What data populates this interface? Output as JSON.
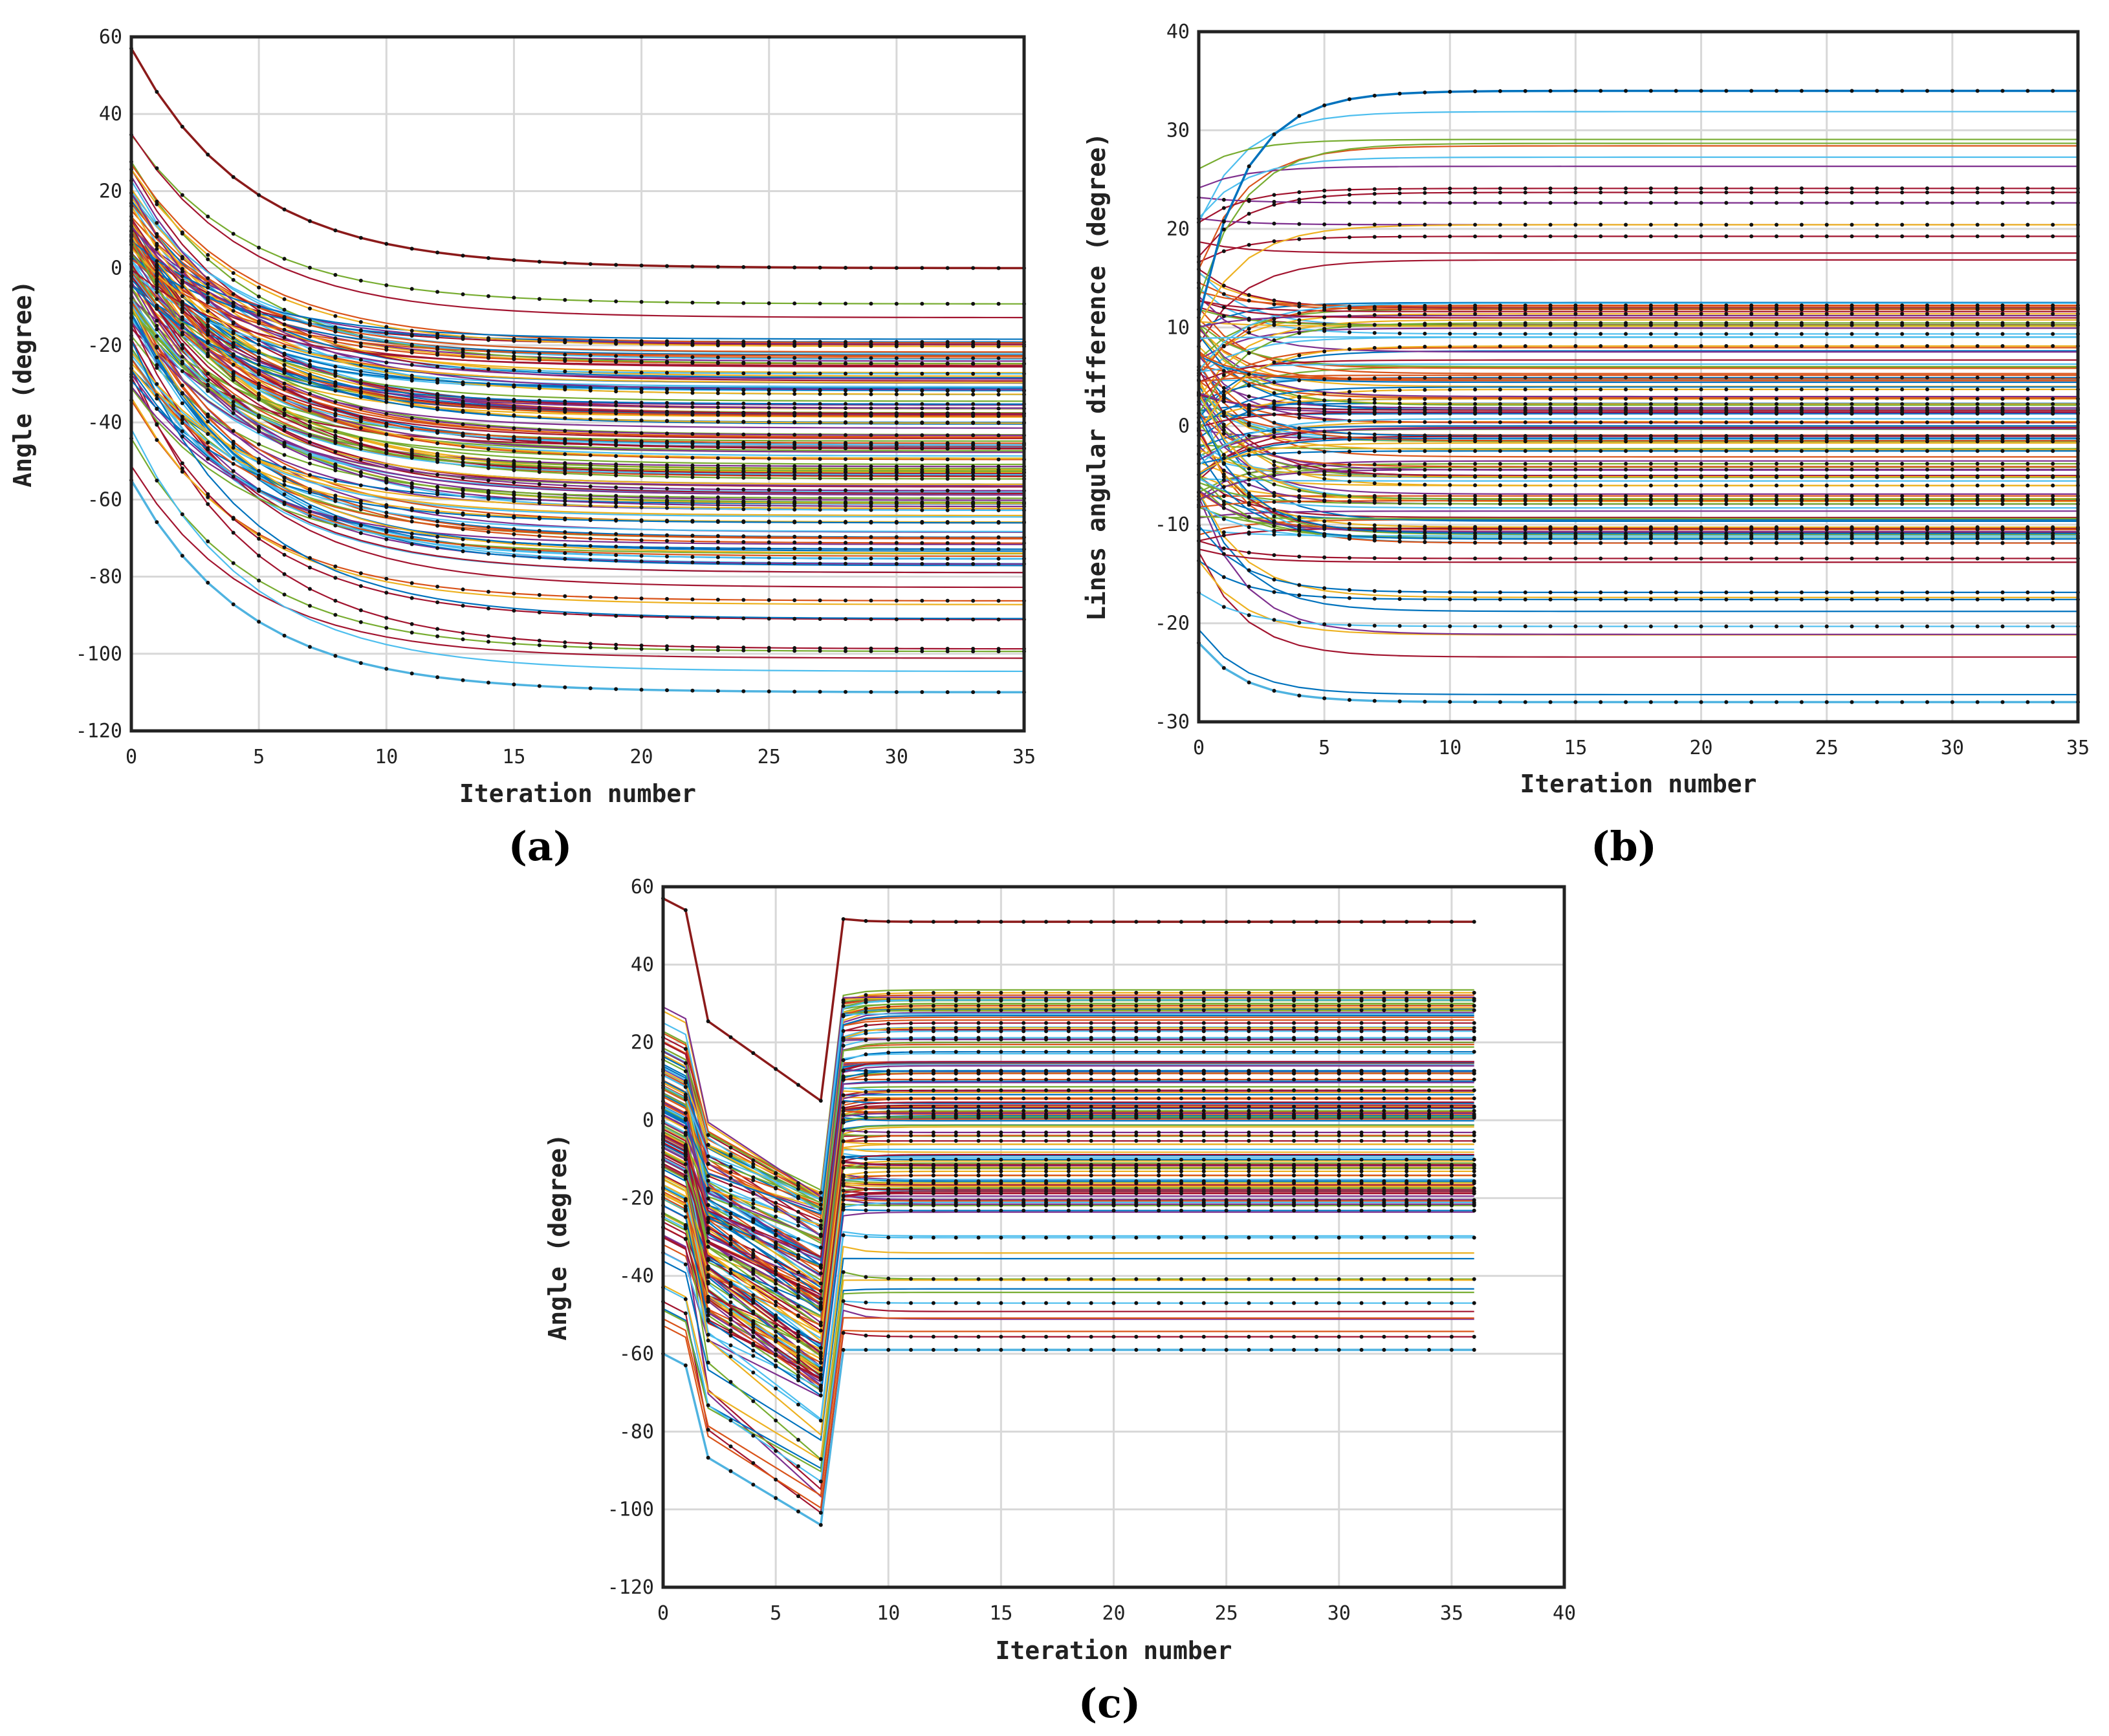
{
  "chart_data": [
    {
      "panel_label": "(a)",
      "type": "line",
      "title": "",
      "xlabel": "Iteration number",
      "ylabel": "Angle (degree)",
      "xlim": [
        0,
        35
      ],
      "ylim": [
        -120,
        60
      ],
      "xticks": [
        0,
        5,
        10,
        15,
        20,
        25,
        30,
        35
      ],
      "yticks": [
        -120,
        -100,
        -80,
        -60,
        -40,
        -20,
        0,
        20,
        40,
        60
      ],
      "grid": true,
      "n_iterations": 35,
      "transient": {
        "kind": "exp",
        "decay": 0.22,
        "jump_at": null
      },
      "series_summary": {
        "count": 150,
        "start_range": [
          -60,
          40
        ],
        "final_range": [
          -110,
          -9
        ],
        "dense_final_range": [
          -78,
          -18
        ]
      },
      "highlighted_series": [
        {
          "name": "top outlier",
          "start": 57,
          "final": 0,
          "color": "#8b1a1a"
        },
        {
          "name": "lowest series",
          "start": -55,
          "final": -110,
          "color": "#4fb3e0"
        }
      ]
    },
    {
      "panel_label": "(b)",
      "type": "line",
      "title": "",
      "xlabel": "Iteration number",
      "ylabel": "Lines angular difference (degree)",
      "xlim": [
        0,
        35
      ],
      "ylim": [
        -30,
        40
      ],
      "xticks": [
        0,
        5,
        10,
        15,
        20,
        25,
        30,
        35
      ],
      "yticks": [
        -30,
        -20,
        -10,
        0,
        10,
        20,
        30,
        40
      ],
      "grid": true,
      "n_iterations": 35,
      "transient": {
        "kind": "exp",
        "decay": 0.55,
        "jump_at": null
      },
      "series_summary": {
        "count": 150,
        "start_range": [
          -22,
          30
        ],
        "final_range": [
          -28,
          34
        ],
        "dense_final_range": [
          -12,
          13
        ]
      },
      "highlighted_series": [
        {
          "name": "top series",
          "start": 11,
          "final": 34,
          "color": "#0072bd"
        },
        {
          "name": "bottom series",
          "start": -22,
          "final": -28,
          "color": "#4fb3e0"
        }
      ]
    },
    {
      "panel_label": "(c)",
      "type": "line",
      "title": "",
      "xlabel": "Iteration number",
      "ylabel": "Angle (degree)",
      "xlim": [
        0,
        40
      ],
      "ylim": [
        -120,
        60
      ],
      "xticks": [
        0,
        5,
        10,
        15,
        20,
        25,
        30,
        35,
        40
      ],
      "yticks": [
        -120,
        -100,
        -80,
        -60,
        -40,
        -20,
        0,
        20,
        40,
        60
      ],
      "grid": true,
      "n_iterations": 36,
      "transient": {
        "kind": "drop-and-recover",
        "decay": 0.3,
        "jump_at": 8
      },
      "series_summary": {
        "count": 150,
        "start_range": [
          -60,
          37
        ],
        "dip_range": [
          -104,
          -10
        ],
        "final_range": [
          -59,
          42
        ],
        "dense_final_range": [
          -22,
          33
        ]
      },
      "highlighted_series": [
        {
          "name": "top outlier",
          "start": 57,
          "dip": 5,
          "final": 51,
          "color": "#8b1a1a"
        },
        {
          "name": "lowest series",
          "start": -60,
          "dip": -104,
          "final": -59,
          "color": "#4fb3e0"
        }
      ]
    }
  ],
  "palette": [
    "#0072bd",
    "#d95319",
    "#edb120",
    "#7e2f8e",
    "#77ac30",
    "#4dbeee",
    "#a2142f"
  ]
}
